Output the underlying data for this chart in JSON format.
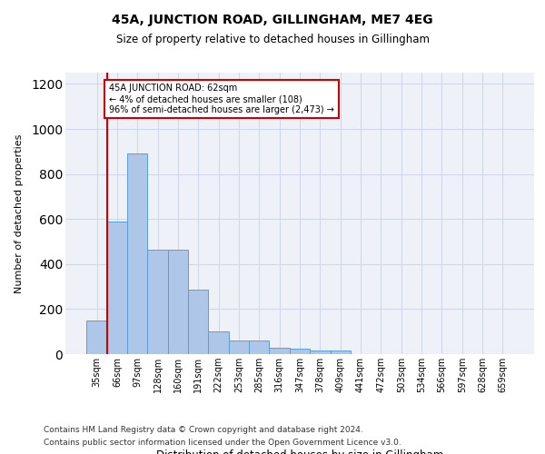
{
  "title": "45A, JUNCTION ROAD, GILLINGHAM, ME7 4EG",
  "subtitle": "Size of property relative to detached houses in Gillingham",
  "xlabel": "Distribution of detached houses by size in Gillingham",
  "ylabel": "Number of detached properties",
  "categories": [
    "35sqm",
    "66sqm",
    "97sqm",
    "128sqm",
    "160sqm",
    "191sqm",
    "222sqm",
    "253sqm",
    "285sqm",
    "316sqm",
    "347sqm",
    "378sqm",
    "409sqm",
    "441sqm",
    "472sqm",
    "503sqm",
    "534sqm",
    "566sqm",
    "597sqm",
    "628sqm",
    "659sqm"
  ],
  "values": [
    150,
    590,
    890,
    465,
    465,
    285,
    100,
    60,
    60,
    30,
    25,
    15,
    15,
    0,
    0,
    0,
    0,
    0,
    0,
    0,
    0
  ],
  "bar_color": "#aec6e8",
  "bar_edge_color": "#5a9fd4",
  "annotation_line_color": "#cc0000",
  "annotation_box_text": "45A JUNCTION ROAD: 62sqm\n← 4% of detached houses are smaller (108)\n96% of semi-detached houses are larger (2,473) →",
  "annotation_box_color": "#cc0000",
  "grid_color": "#d0d8e8",
  "background_color": "#eef2f8",
  "ylim": [
    0,
    1250
  ],
  "yticks": [
    0,
    200,
    400,
    600,
    800,
    1000,
    1200
  ],
  "footnote1": "Contains HM Land Registry data © Crown copyright and database right 2024.",
  "footnote2": "Contains public sector information licensed under the Open Government Licence v3.0."
}
